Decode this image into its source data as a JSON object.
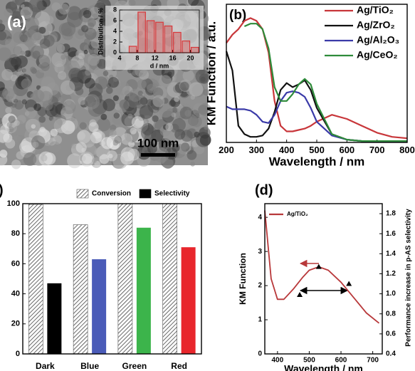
{
  "chart_data": [
    {
      "type": "histogram",
      "panel_label": "(a)",
      "scale_bar_label": "100 nm",
      "xlabel": "d / nm",
      "ylabel": "Distribution / %",
      "bins": [
        6,
        8,
        10,
        12,
        14,
        16,
        18,
        20,
        22
      ],
      "values": [
        1.2,
        7.6,
        6.0,
        5.7,
        5.0,
        3.8,
        2.2,
        1.0
      ],
      "color": "#d9383a",
      "xlim": [
        4,
        22
      ],
      "ylim": [
        0,
        8
      ],
      "xticks": [
        4,
        8,
        12,
        16,
        20
      ],
      "yticks": [
        0,
        2,
        4,
        6,
        8
      ]
    },
    {
      "type": "line",
      "panel_label": "(b)",
      "xlabel": "Wavelength / nm",
      "ylabel": "KM Function / a.u.",
      "x": [
        200,
        220,
        240,
        260,
        280,
        300,
        320,
        340,
        360,
        380,
        400,
        420,
        440,
        460,
        480,
        500,
        550,
        600,
        650,
        700,
        750,
        800
      ],
      "series": [
        {
          "name": "Ag/TiO₂",
          "color": "#c8363a",
          "values": [
            0.72,
            0.78,
            0.82,
            0.88,
            0.9,
            0.88,
            0.82,
            0.65,
            0.3,
            0.12,
            0.08,
            0.08,
            0.09,
            0.1,
            0.12,
            0.15,
            0.2,
            0.17,
            0.12,
            0.07,
            0.04,
            0.03
          ]
        },
        {
          "name": "Ag/ZrO₂",
          "color": "#111111",
          "values": [
            0.66,
            0.52,
            0.12,
            0.06,
            0.04,
            0.04,
            0.05,
            0.1,
            0.22,
            0.38,
            0.43,
            0.4,
            0.42,
            0.45,
            0.38,
            0.25,
            0.06,
            0.02,
            0.01,
            0.01,
            0.01,
            0.01
          ]
        },
        {
          "name": "Ag/Al₂O₃",
          "color": "#3a3aa8",
          "values": [
            0.26,
            0.24,
            0.24,
            0.24,
            0.23,
            0.2,
            0.15,
            0.14,
            0.2,
            0.3,
            0.36,
            0.37,
            0.36,
            0.33,
            0.25,
            0.15,
            0.05,
            0.02,
            0.01,
            0.01,
            0.01,
            0.01
          ]
        },
        {
          "name": "Ag/CeO₂",
          "color": "#2e8b3a",
          "values": [
            null,
            null,
            null,
            0.84,
            0.86,
            0.86,
            0.82,
            0.68,
            0.4,
            0.3,
            0.3,
            0.35,
            0.42,
            0.46,
            0.42,
            0.28,
            0.06,
            0.02,
            0.01,
            0.01,
            0.01,
            0.01
          ]
        }
      ],
      "xlim": [
        200,
        800
      ],
      "ylim": [
        0,
        1
      ],
      "xticks": [
        200,
        300,
        400,
        500,
        600,
        700,
        800
      ],
      "legend": "upper right"
    },
    {
      "type": "bar",
      "panel_label": ")",
      "categories": [
        "Dark",
        "Blue",
        "Green",
        "Red"
      ],
      "series": [
        {
          "name": "Conversion",
          "color": "#555555",
          "pattern": "hatch",
          "values": [
            99.5,
            86,
            100,
            100
          ]
        },
        {
          "name": "Selectivity",
          "color": "#000000",
          "colors": [
            "#000000",
            "#4a5bb8",
            "#3cb44b",
            "#e8262c"
          ],
          "values": [
            47,
            63,
            84,
            71
          ]
        }
      ],
      "ylim": [
        0,
        100
      ],
      "yticks": [
        0,
        20,
        40,
        60,
        80,
        100
      ],
      "legend": "upper center"
    },
    {
      "type": "line",
      "panel_label": "(d)",
      "xlabel": "Wavelength / nm",
      "ylabel": "KM Function",
      "y2label": "Performance increase in p-AS selectivity",
      "x": [
        360,
        380,
        400,
        420,
        450,
        480,
        500,
        530,
        560,
        600,
        640,
        680,
        720
      ],
      "series": [
        {
          "name": "Ag/TiO₂",
          "color": "#b8383a",
          "values": [
            4.2,
            2.2,
            1.6,
            1.6,
            1.9,
            2.25,
            2.45,
            2.55,
            2.45,
            2.1,
            1.65,
            1.2,
            0.9
          ]
        },
        {
          "x": [
            470,
            530,
            625
          ],
          "values": [
            0.99,
            1.27,
            1.1
          ],
          "axis": "y2",
          "color": "#000000",
          "marker": "triangle"
        }
      ],
      "xlim": [
        360,
        730
      ],
      "ylim": [
        0,
        4.4
      ],
      "y2lim": [
        0.4,
        1.9
      ],
      "xticks": [
        400,
        500,
        600,
        700
      ],
      "yticks": [
        0,
        1,
        2,
        3,
        4
      ],
      "y2ticks": [
        0.4,
        0.6,
        0.8,
        {
          "value": 1,
          "label": "1.0"
        },
        1.2,
        1.4,
        1.6,
        1.8
      ],
      "legend": "upper left"
    }
  ]
}
